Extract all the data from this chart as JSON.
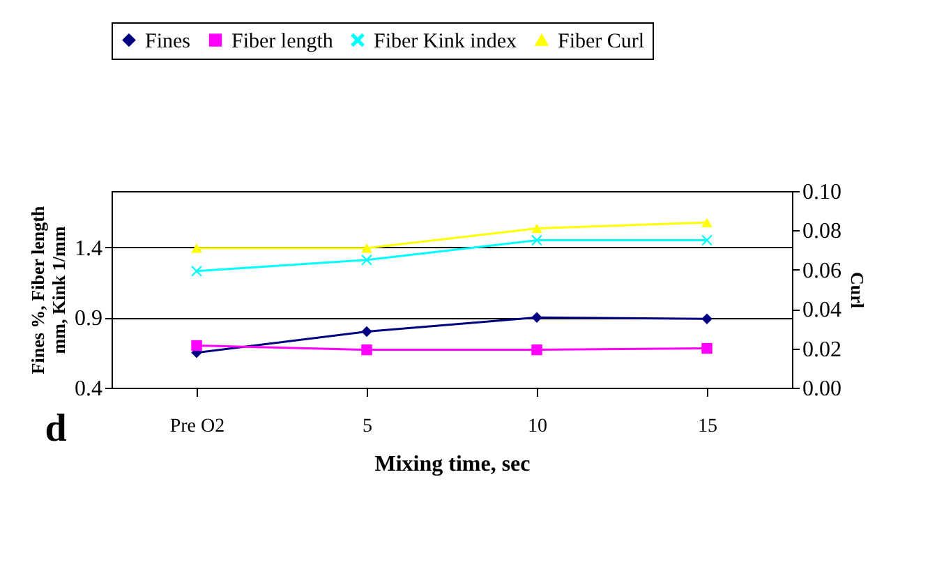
{
  "chart_data": {
    "type": "line",
    "xlabel": "Mixing time, sec",
    "ylabel": "Fines %, Fiber length\nmm, Kink 1/mm",
    "y2label": "Curl",
    "categories": [
      "Pre O2",
      "5",
      "10",
      "15"
    ],
    "series": [
      {
        "name": "Fines",
        "color": "#000080",
        "marker": "diamond",
        "values": [
          0.65,
          0.8,
          0.9,
          0.89
        ]
      },
      {
        "name": "Fiber length",
        "color": "#ff00ff",
        "marker": "square",
        "values": [
          0.7,
          0.67,
          0.67,
          0.68
        ]
      },
      {
        "name": "Fiber Kink index",
        "color": "#00ffff",
        "marker": "cross",
        "values": [
          1.23,
          1.31,
          1.45,
          1.45
        ]
      },
      {
        "name": "Fiber Curl",
        "color": "#ffff00",
        "marker": "triangle",
        "axis": "y2",
        "values": [
          0.071,
          0.071,
          0.081,
          0.084
        ]
      }
    ],
    "ylim": [
      0.4,
      1.8
    ],
    "yticks": [
      0.4,
      0.9,
      1.4
    ],
    "y2lim": [
      0,
      0.1
    ],
    "y2ticks": [
      {
        "value": 0,
        "label": "0.00"
      },
      {
        "value": 0.02,
        "label": "0.02"
      },
      {
        "value": 0.04,
        "label": "0.04"
      },
      {
        "value": 0.06,
        "label": "0.06"
      },
      {
        "value": 0.08,
        "label": "0.08"
      },
      {
        "value": 0.1,
        "label": "0.10"
      }
    ],
    "grid": "y",
    "legend": "top",
    "annotations": [
      "d"
    ]
  }
}
